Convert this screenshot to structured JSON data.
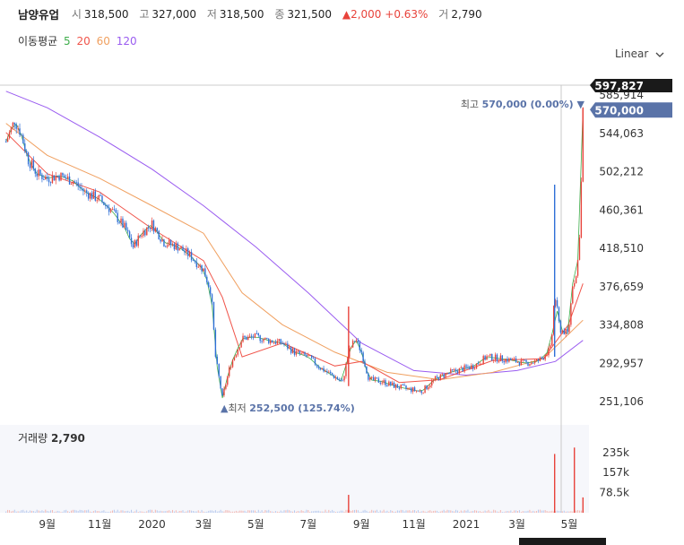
{
  "header": {
    "stock_name": "남양유업",
    "open_label": "시",
    "open": "318,500",
    "high_label": "고",
    "high": "327,000",
    "low_label": "저",
    "low": "318,500",
    "close_label": "종",
    "close": "321,500",
    "change": "2,000",
    "change_pct": "+0.63%",
    "volume_label": "거",
    "volume": "2,790",
    "up_color": "#e8433b"
  },
  "ma_legend": {
    "label": "이동평균",
    "items": [
      {
        "period": "5",
        "color": "#3fae4c"
      },
      {
        "period": "20",
        "color": "#f0544a"
      },
      {
        "period": "60",
        "color": "#f0a060"
      },
      {
        "period": "120",
        "color": "#9a5cf0"
      }
    ]
  },
  "scale_selector": {
    "value": "Linear"
  },
  "volume_panel": {
    "label": "거래량",
    "value": "2,790"
  },
  "chart_data": {
    "type": "candlestick",
    "price_axis": {
      "ticks": [
        "585,914",
        "544,063",
        "502,212",
        "460,361",
        "418,510",
        "376,659",
        "334,808",
        "292,957",
        "251,106"
      ],
      "tick_values": [
        585914,
        544063,
        502212,
        460361,
        418510,
        376659,
        334808,
        292957,
        251106
      ],
      "current_price_tag": "570,000",
      "crosshair_tag": "597,827",
      "tag_color": "#5a73a8"
    },
    "volume_axis": {
      "ticks": [
        "235k",
        "157k",
        "78.5k"
      ],
      "tick_values": [
        235000,
        157000,
        78500
      ]
    },
    "x_axis": {
      "ticks": [
        "9월",
        "11월",
        "2020",
        "3월",
        "5월",
        "7월",
        "9월",
        "11월",
        "2021",
        "3월",
        "5월"
      ],
      "tick_dates": [
        "2019-09-01",
        "2019-11-01",
        "2020-01-01",
        "2020-03-01",
        "2020-05-01",
        "2020-07-01",
        "2020-09-01",
        "2020-11-01",
        "2021-01-01",
        "2021-03-01",
        "2021-05-01"
      ]
    },
    "annotations": {
      "high": {
        "label": "최고",
        "value": "570,000 (0.00%)",
        "price": 570000,
        "date": "2021-05-17"
      },
      "low": {
        "label": "최저",
        "value": "252,500 (125.74%)",
        "price": 252500,
        "date": "2020-03-23"
      }
    },
    "price_path": [
      [
        "2019-07-15",
        535000
      ],
      [
        "2019-07-25",
        558000
      ],
      [
        "2019-08-01",
        545000
      ],
      [
        "2019-08-10",
        515000
      ],
      [
        "2019-08-20",
        500000
      ],
      [
        "2019-09-01",
        495000
      ],
      [
        "2019-09-15",
        498000
      ],
      [
        "2019-10-01",
        492000
      ],
      [
        "2019-10-15",
        480000
      ],
      [
        "2019-11-01",
        472000
      ],
      [
        "2019-11-15",
        460000
      ],
      [
        "2019-12-01",
        440000
      ],
      [
        "2019-12-10",
        420000
      ],
      [
        "2019-12-20",
        435000
      ],
      [
        "2020-01-01",
        445000
      ],
      [
        "2020-01-15",
        425000
      ],
      [
        "2020-02-01",
        420000
      ],
      [
        "2020-02-15",
        410000
      ],
      [
        "2020-03-01",
        395000
      ],
      [
        "2020-03-10",
        370000
      ],
      [
        "2020-03-15",
        300000
      ],
      [
        "2020-03-23",
        255000
      ],
      [
        "2020-04-01",
        290000
      ],
      [
        "2020-04-15",
        320000
      ],
      [
        "2020-05-01",
        322000
      ],
      [
        "2020-05-15",
        318000
      ],
      [
        "2020-06-01",
        315000
      ],
      [
        "2020-06-15",
        305000
      ],
      [
        "2020-07-01",
        300000
      ],
      [
        "2020-07-15",
        288000
      ],
      [
        "2020-08-01",
        278000
      ],
      [
        "2020-08-10",
        272000
      ],
      [
        "2020-08-17",
        305000
      ],
      [
        "2020-08-25",
        320000
      ],
      [
        "2020-09-01",
        305000
      ],
      [
        "2020-09-10",
        275000
      ],
      [
        "2020-09-25",
        273000
      ],
      [
        "2020-10-10",
        268000
      ],
      [
        "2020-10-25",
        265000
      ],
      [
        "2020-11-10",
        262000
      ],
      [
        "2020-11-25",
        275000
      ],
      [
        "2020-12-10",
        282000
      ],
      [
        "2020-12-25",
        286000
      ],
      [
        "2021-01-10",
        290000
      ],
      [
        "2021-01-25",
        300000
      ],
      [
        "2021-02-10",
        298000
      ],
      [
        "2021-02-25",
        296000
      ],
      [
        "2021-03-10",
        293000
      ],
      [
        "2021-03-25",
        295000
      ],
      [
        "2021-04-01",
        300000
      ],
      [
        "2021-04-10",
        310000
      ],
      [
        "2021-04-14",
        370000
      ],
      [
        "2021-04-20",
        330000
      ],
      [
        "2021-04-30",
        325000
      ],
      [
        "2021-05-05",
        380000
      ],
      [
        "2021-05-10",
        390000
      ],
      [
        "2021-05-14",
        450000
      ],
      [
        "2021-05-17",
        570000
      ]
    ],
    "moving_averages": {
      "ma20": [
        [
          "2019-07-15",
          545000
        ],
        [
          "2019-09-01",
          500000
        ],
        [
          "2019-11-01",
          480000
        ],
        [
          "2020-01-01",
          440000
        ],
        [
          "2020-03-01",
          405000
        ],
        [
          "2020-03-23",
          365000
        ],
        [
          "2020-04-15",
          300000
        ],
        [
          "2020-06-01",
          315000
        ],
        [
          "2020-08-01",
          290000
        ],
        [
          "2020-09-01",
          295000
        ],
        [
          "2020-10-15",
          272000
        ],
        [
          "2020-12-01",
          275000
        ],
        [
          "2021-02-01",
          296000
        ],
        [
          "2021-04-01",
          298000
        ],
        [
          "2021-04-30",
          335000
        ],
        [
          "2021-05-17",
          380000
        ]
      ],
      "ma60": [
        [
          "2019-07-15",
          555000
        ],
        [
          "2019-09-01",
          520000
        ],
        [
          "2019-11-01",
          495000
        ],
        [
          "2020-01-01",
          465000
        ],
        [
          "2020-03-01",
          435000
        ],
        [
          "2020-04-15",
          370000
        ],
        [
          "2020-06-01",
          335000
        ],
        [
          "2020-08-01",
          305000
        ],
        [
          "2020-10-01",
          283000
        ],
        [
          "2020-12-01",
          275000
        ],
        [
          "2021-02-01",
          283000
        ],
        [
          "2021-04-01",
          298000
        ],
        [
          "2021-05-17",
          340000
        ]
      ],
      "ma120": [
        [
          "2019-07-15",
          590000
        ],
        [
          "2019-09-01",
          572000
        ],
        [
          "2019-11-01",
          540000
        ],
        [
          "2020-01-01",
          505000
        ],
        [
          "2020-03-01",
          465000
        ],
        [
          "2020-05-01",
          420000
        ],
        [
          "2020-07-01",
          370000
        ],
        [
          "2020-09-01",
          315000
        ],
        [
          "2020-11-01",
          285000
        ],
        [
          "2021-01-01",
          280000
        ],
        [
          "2021-03-01",
          285000
        ],
        [
          "2021-04-15",
          295000
        ],
        [
          "2021-05-17",
          318000
        ]
      ]
    },
    "volume_spikes": [
      [
        "2020-08-17",
        70000
      ],
      [
        "2021-04-14",
        230000
      ],
      [
        "2021-05-07",
        255000
      ],
      [
        "2021-05-17",
        60000
      ]
    ]
  }
}
